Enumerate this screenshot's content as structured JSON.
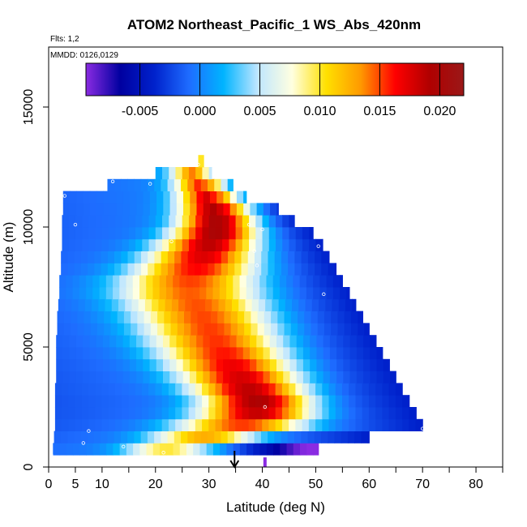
{
  "chart_data": {
    "type": "heatmap",
    "title": "ATOM2 Northeast_Pacific_1 WS_Abs_420nm",
    "flights_label": "Flts: 1,2",
    "dates_label": "MMDD: 0126,0129",
    "xlabel": "Latitude (deg N)",
    "ylabel": "Altitude (m)",
    "xlim": [
      0,
      85
    ],
    "ylim": [
      0,
      17500
    ],
    "x_ticks": [
      0,
      5,
      10,
      20,
      30,
      40,
      50,
      60,
      70,
      80
    ],
    "x_minor_ticks": [
      15,
      25,
      35,
      45,
      55,
      65,
      75,
      85
    ],
    "y_ticks": [
      0,
      5000,
      10000,
      15000
    ],
    "colorbar": {
      "min": -0.0095,
      "max": 0.022,
      "ticks": [
        -0.005,
        0.0,
        0.005,
        0.01,
        0.015,
        0.02
      ],
      "tick_labels": [
        "-0.005",
        "0.000",
        "0.005",
        "0.010",
        "0.015",
        "0.020"
      ],
      "colors": [
        "#8a2be2",
        "#0000a0",
        "#0022cc",
        "#1e6cff",
        "#00b4ff",
        "#bfe6ff",
        "#ffffe0",
        "#ffe000",
        "#ff9900",
        "#ff0000",
        "#b00000",
        "#9a1818"
      ]
    },
    "bands": [
      {
        "alt_low": 500,
        "alt_high": 1000,
        "x_start": 0.8,
        "x_end": 50.5
      },
      {
        "alt_low": 1000,
        "alt_high": 1500,
        "x_start": 1.0,
        "x_end": 60.0
      },
      {
        "alt_low": 1500,
        "alt_high": 2000,
        "x_start": 1.2,
        "x_end": 70.0
      },
      {
        "alt_low": 2000,
        "alt_high": 2500,
        "x_start": 1.2,
        "x_end": 68.8
      },
      {
        "alt_low": 2500,
        "alt_high": 3000,
        "x_start": 1.2,
        "x_end": 67.5
      },
      {
        "alt_low": 3000,
        "alt_high": 3500,
        "x_start": 1.2,
        "x_end": 66.2
      },
      {
        "alt_low": 3500,
        "alt_high": 4000,
        "x_start": 1.4,
        "x_end": 65.0
      },
      {
        "alt_low": 4000,
        "alt_high": 4500,
        "x_start": 1.4,
        "x_end": 63.8
      },
      {
        "alt_low": 4500,
        "alt_high": 5000,
        "x_start": 1.4,
        "x_end": 62.5
      },
      {
        "alt_low": 5000,
        "alt_high": 5500,
        "x_start": 1.4,
        "x_end": 61.3
      },
      {
        "alt_low": 5500,
        "alt_high": 6000,
        "x_start": 1.6,
        "x_end": 60.0
      },
      {
        "alt_low": 6000,
        "alt_high": 6500,
        "x_start": 1.6,
        "x_end": 58.8
      },
      {
        "alt_low": 6500,
        "alt_high": 7000,
        "x_start": 1.8,
        "x_end": 57.5
      },
      {
        "alt_low": 7000,
        "alt_high": 7500,
        "x_start": 2.0,
        "x_end": 56.3
      },
      {
        "alt_low": 7500,
        "alt_high": 8000,
        "x_start": 2.0,
        "x_end": 55.0
      },
      {
        "alt_low": 8000,
        "alt_high": 8500,
        "x_start": 2.3,
        "x_end": 53.8
      },
      {
        "alt_low": 8500,
        "alt_high": 9000,
        "x_start": 2.3,
        "x_end": 52.5
      },
      {
        "alt_low": 9000,
        "alt_high": 9500,
        "x_start": 2.5,
        "x_end": 51.3
      },
      {
        "alt_low": 9500,
        "alt_high": 10000,
        "x_start": 2.5,
        "x_end": 49.5
      },
      {
        "alt_low": 10000,
        "alt_high": 10500,
        "x_start": 2.5,
        "x_end": 46.0
      },
      {
        "alt_low": 10500,
        "alt_high": 11000,
        "x_start": 2.7,
        "x_end": 43.0
      },
      {
        "alt_low": 11000,
        "alt_high": 11500,
        "x_start": 2.7,
        "x_end": 37.0
      },
      {
        "alt_low": 11500,
        "alt_high": 12000,
        "x_start": 11.0,
        "x_end": 34.5
      },
      {
        "alt_low": 12000,
        "alt_high": 12500,
        "x_start": 20.0,
        "x_end": 30.5
      },
      {
        "alt_low": 12500,
        "alt_high": 13000,
        "x_start": 28.0,
        "x_end": 29.0
      }
    ],
    "surface_band": {
      "alt_low": 500,
      "alt_high": 1000,
      "x_start": 0.8,
      "x_end": 50.5
    },
    "plume": {
      "alt_control": [
        600,
        1800,
        2500,
        5000,
        7500,
        10000,
        11000,
        12500
      ],
      "center_lat": [
        20.0,
        37.0,
        40.0,
        32.0,
        26.0,
        32.0,
        31.0,
        26.5
      ],
      "width": [
        7.0,
        12.0,
        10.0,
        12.0,
        13.0,
        7.5,
        6.5,
        4.0
      ],
      "peak_value": [
        0.009,
        0.0155,
        0.02,
        0.0155,
        0.0145,
        0.0205,
        0.019,
        0.013
      ]
    },
    "markers": [
      {
        "lat": 0.5,
        "alt": 500
      },
      {
        "lat": 6.5,
        "alt": 1000
      },
      {
        "lat": 7.5,
        "alt": 1500
      },
      {
        "lat": 14.0,
        "alt": 850
      },
      {
        "lat": 21.5,
        "alt": 600
      },
      {
        "lat": 40.5,
        "alt": 2500
      },
      {
        "lat": 70.0,
        "alt": 1600
      },
      {
        "lat": 23.0,
        "alt": 9400
      },
      {
        "lat": 38.5,
        "alt": 9000
      },
      {
        "lat": 39.0,
        "alt": 8400
      },
      {
        "lat": 50.5,
        "alt": 9200
      },
      {
        "lat": 51.5,
        "alt": 7200
      },
      {
        "lat": 5.0,
        "alt": 10100
      },
      {
        "lat": 3.0,
        "alt": 11300
      },
      {
        "lat": 12.0,
        "alt": 11900
      },
      {
        "lat": 19.0,
        "alt": 11800
      },
      {
        "lat": 37.5,
        "alt": 10100
      },
      {
        "lat": 40.0,
        "alt": 9900
      },
      {
        "lat": 28.0,
        "alt": 12600
      }
    ],
    "arrow_latitude": 34.8,
    "purple_tick": {
      "lat": 40.5,
      "alt_low": 0,
      "alt_high": 400
    }
  }
}
